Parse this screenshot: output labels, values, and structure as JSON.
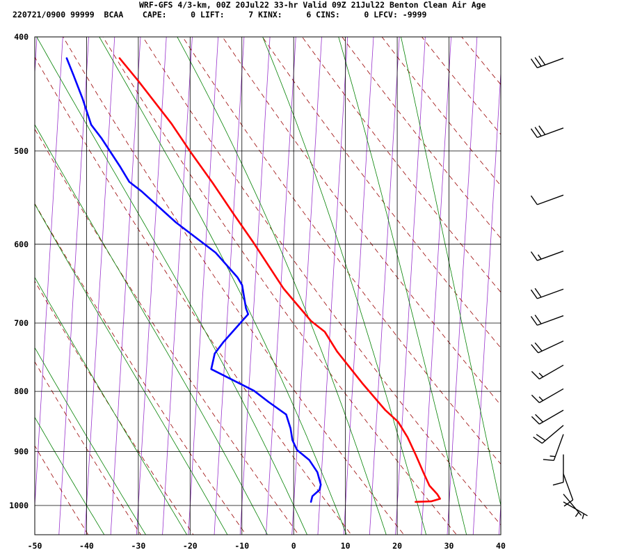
{
  "header": {
    "line1": "WRF-GFS 4/3-km, 00Z 20Jul22 33-hr Valid 09Z 21Jul22 Benton Clean Air Age",
    "line2": "220721/0900 99999  BCAA    CAPE:     0 LIFT:     7 KINX:     6 CINS:     0 LFCV: -9999"
  },
  "colors": {
    "temperature": "#ff0000",
    "dewpoint": "#0000ff",
    "isotherm": "#9933cc",
    "dry_adiabat": "#990000",
    "moist_adiabat": "#008000",
    "grid": "#000000"
  },
  "chart_data": {
    "type": "line",
    "subtype": "skew-T log-p sounding",
    "title": "",
    "xlabel": "",
    "ylabel": "",
    "x_ticks": [
      -50,
      -40,
      -30,
      -20,
      -10,
      0,
      10,
      20,
      30,
      40
    ],
    "y_ticks": [
      400,
      500,
      600,
      700,
      800,
      900,
      1000
    ],
    "xlim": [
      -50,
      40
    ],
    "ylim": [
      1040,
      400
    ],
    "y_scale": "log",
    "grid": true,
    "series": [
      {
        "key": "temperature",
        "color": "#ff0000",
        "points": [
          [
            23.5,
            993
          ],
          [
            26.5,
            992
          ],
          [
            28.2,
            987
          ],
          [
            27.6,
            978
          ],
          [
            27.0,
            972
          ],
          [
            26.0,
            962
          ],
          [
            24.7,
            938
          ],
          [
            23.0,
            906
          ],
          [
            21.2,
            875
          ],
          [
            19.2,
            849
          ],
          [
            16.6,
            830
          ],
          [
            11.8,
            787
          ],
          [
            6.6,
            740
          ],
          [
            4.0,
            712
          ],
          [
            1.2,
            697
          ],
          [
            -4.5,
            654
          ],
          [
            -10.8,
            598
          ],
          [
            -14.9,
            566
          ],
          [
            -19.4,
            532
          ],
          [
            -24.0,
            501
          ],
          [
            -28.0,
            474
          ],
          [
            -34.9,
            436
          ],
          [
            -38.8,
            417
          ]
        ]
      },
      {
        "key": "dewpoint",
        "color": "#0000ff",
        "points": [
          [
            3.3,
            993
          ],
          [
            3.5,
            982
          ],
          [
            4.8,
            970
          ],
          [
            5.0,
            960
          ],
          [
            4.2,
            937
          ],
          [
            2.5,
            915
          ],
          [
            0.0,
            897
          ],
          [
            -1.0,
            880
          ],
          [
            -1.5,
            860
          ],
          [
            -2.5,
            837
          ],
          [
            -6.0,
            817
          ],
          [
            -9.0,
            799
          ],
          [
            -17.5,
            766
          ],
          [
            -17.0,
            743
          ],
          [
            -15.5,
            727
          ],
          [
            -11.0,
            688
          ],
          [
            -11.5,
            680
          ],
          [
            -12.5,
            650
          ],
          [
            -13.5,
            640
          ],
          [
            -18.0,
            610
          ],
          [
            -26.0,
            575
          ],
          [
            -33.0,
            541
          ],
          [
            -35.5,
            531
          ],
          [
            -37.5,
            515
          ],
          [
            -41.3,
            488
          ],
          [
            -43.5,
            475
          ],
          [
            -45.5,
            451
          ],
          [
            -47.5,
            431
          ],
          [
            -49.0,
            417
          ]
        ]
      }
    ]
  },
  "wind_barbs": [
    {
      "pressure": 417,
      "dir": 250,
      "speed": 30
    },
    {
      "pressure": 478,
      "dir": 250,
      "speed": 30
    },
    {
      "pressure": 545,
      "dir": 250,
      "speed": 10
    },
    {
      "pressure": 608,
      "dir": 250,
      "speed": 15
    },
    {
      "pressure": 655,
      "dir": 250,
      "speed": 20
    },
    {
      "pressure": 690,
      "dir": 250,
      "speed": 20
    },
    {
      "pressure": 725,
      "dir": 245,
      "speed": 20
    },
    {
      "pressure": 760,
      "dir": 240,
      "speed": 15
    },
    {
      "pressure": 796,
      "dir": 240,
      "speed": 15
    },
    {
      "pressure": 830,
      "dir": 240,
      "speed": 20
    },
    {
      "pressure": 855,
      "dir": 230,
      "speed": 20
    },
    {
      "pressure": 870,
      "dir": 200,
      "speed": 15
    },
    {
      "pressure": 905,
      "dir": 180,
      "speed": 10
    },
    {
      "pressure": 940,
      "dir": 160,
      "speed": 10
    },
    {
      "pressure": 978,
      "dir": 140,
      "speed": 5
    },
    {
      "pressure": 993,
      "dir": 120,
      "speed": 5
    }
  ]
}
